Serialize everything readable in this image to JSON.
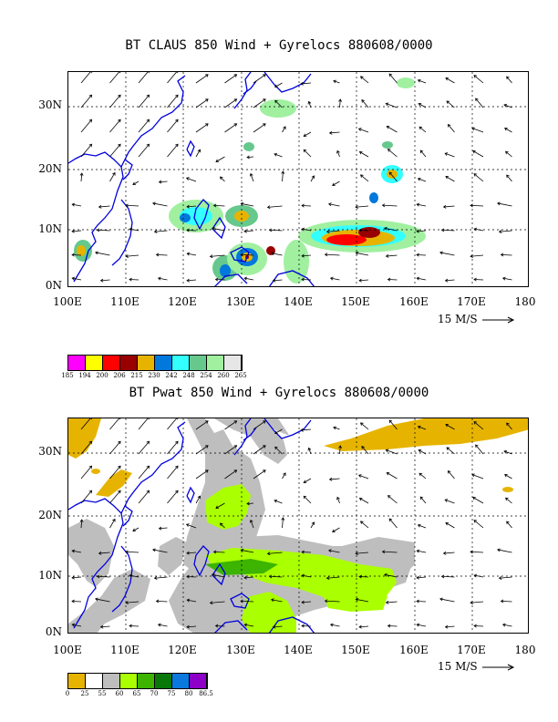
{
  "panels": [
    {
      "title": "BT CLAUS 850 Wind + Gyrelocs 880608/0000",
      "y_labels": [
        "30N",
        "20N",
        "10N",
        "0N"
      ],
      "x_labels": [
        "100E",
        "110E",
        "120E",
        "130E",
        "140E",
        "150E",
        "160E",
        "170E",
        "180"
      ],
      "scale_label": "15 M/S",
      "legend": {
        "colors": [
          "#ff00ff",
          "#ffff00",
          "#ff0000",
          "#990000",
          "#e6b400",
          "#0078dc",
          "#33ffff",
          "#66c88c",
          "#a0f0a0",
          "#e6e6e6"
        ],
        "labels": [
          "185",
          "194",
          "200",
          "206",
          "215",
          "230",
          "242",
          "248",
          "254",
          "260",
          "265"
        ]
      }
    },
    {
      "title": "BT Pwat 850 Wind + Gyrelocs 880608/0000",
      "y_labels": [
        "30N",
        "20N",
        "10N",
        "0N"
      ],
      "x_labels": [
        "100E",
        "110E",
        "120E",
        "130E",
        "140E",
        "150E",
        "160E",
        "170E",
        "180"
      ],
      "scale_label": "15 M/S",
      "legend": {
        "colors": [
          "#e6b400",
          "#ffffff",
          "#bebebe",
          "#aaff00",
          "#3cb400",
          "#087808",
          "#0a78dc",
          "#8c00c8"
        ],
        "labels": [
          "0",
          "25",
          "55",
          "60",
          "65",
          "70",
          "75",
          "80",
          "86.5"
        ]
      }
    }
  ]
}
